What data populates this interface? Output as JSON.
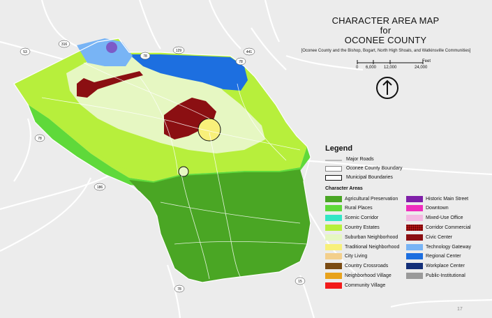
{
  "title": {
    "line1": "CHARACTER AREA MAP",
    "line2": "for",
    "line3": "OCONEE COUNTY"
  },
  "subtitle": "[Oconee County and the Bishop, Bogart, North High Shoals, and Watkinsville Communities]",
  "scale": {
    "unit": "Feet",
    "ticks": [
      "0",
      "6,000",
      "12,000",
      "24,000"
    ]
  },
  "highways": [
    "316",
    "53",
    "78",
    "129",
    "441",
    "78",
    "78",
    "186",
    "78",
    "15"
  ],
  "legend": {
    "title": "Legend",
    "lines": [
      {
        "label": "Major Roads",
        "name": "major-roads"
      },
      {
        "label": "Oconee County Boundary",
        "name": "county-boundary"
      },
      {
        "label": "Municipal Boundaries",
        "name": "municipal-boundaries"
      }
    ],
    "areas_header": "Character Areas",
    "left": [
      {
        "label": "Agricultural Preservation",
        "color": "#4aa624"
      },
      {
        "label": "Rural Places",
        "color": "#5fd93a"
      },
      {
        "label": "Scenic Corridor",
        "color": "#33e6c5"
      },
      {
        "label": "Country Estates",
        "color": "#b7ef3c"
      },
      {
        "label": "Suburban Neighborhood",
        "color": "#e6f7c2"
      },
      {
        "label": "Traditional Neighborhood",
        "color": "#f8f07a"
      },
      {
        "label": "City Living",
        "color": "#f3cf8b"
      },
      {
        "label": "Country Crossroads",
        "color": "#7a4b13"
      },
      {
        "label": "Neighborhood Village",
        "color": "#e8a21c"
      },
      {
        "label": "Community Village",
        "color": "#f21a1a"
      }
    ],
    "right": [
      {
        "label": "Historic Main Street",
        "color": "#7f1fa8"
      },
      {
        "label": "Downtown",
        "color": "#ef2dbd"
      },
      {
        "label": "Mixed-Use Office",
        "color": "#f4b8e2"
      },
      {
        "label": "Corridor Commercial",
        "color": "#b01515"
      },
      {
        "label": "Civic Center",
        "color": "#8b0f12"
      },
      {
        "label": "Technology Gateway",
        "color": "#78b4f5"
      },
      {
        "label": "Regional Center",
        "color": "#1d6fe0"
      },
      {
        "label": "Workplace Center",
        "color": "#132f78"
      },
      {
        "label": "Public-Institutional",
        "color": "#9a9a9a"
      }
    ]
  },
  "page_number": "17"
}
